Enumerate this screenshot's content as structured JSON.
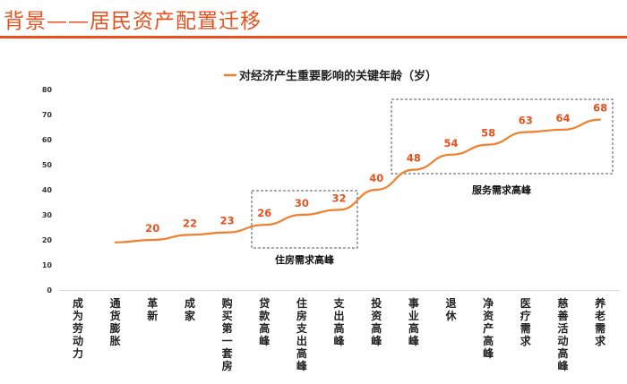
{
  "header": {
    "title": "背景——居民资产配置迁移"
  },
  "chart_data": {
    "type": "line",
    "title": "",
    "legend": "对经济产生重要影响的关键年龄（岁）",
    "legend_position": "top-center",
    "xlabel": "",
    "ylabel": "",
    "ylim": [
      0,
      80
    ],
    "yticks": [
      0,
      10,
      20,
      30,
      40,
      50,
      60,
      70,
      80
    ],
    "categories": [
      "成为劳动力",
      "通货膨胀",
      "革新",
      "成家",
      "购买第一套房",
      "贷款高峰",
      "住房支出高峰",
      "支出高峰",
      "投资高峰",
      "事业高峰",
      "退休",
      "净资产高峰",
      "医疗需求",
      "慈善活动高峰",
      "养老需求"
    ],
    "series": [
      {
        "name": "对经济产生重要影响的关键年龄（岁）",
        "color": "#f07f2c",
        "values": [
          null,
          19,
          20,
          22,
          23,
          26,
          30,
          32,
          40,
          48,
          54,
          58,
          63,
          64,
          68
        ],
        "labeled": [
          false,
          false,
          true,
          true,
          true,
          true,
          true,
          true,
          true,
          true,
          true,
          true,
          true,
          true,
          true
        ]
      }
    ],
    "annotations": [
      {
        "text": "住房需求高峰",
        "from": "贷款高峰",
        "to": "支出高峰"
      },
      {
        "text": "服务需求高峰",
        "from": "事业高峰",
        "to": "养老需求"
      }
    ],
    "grid": false
  }
}
